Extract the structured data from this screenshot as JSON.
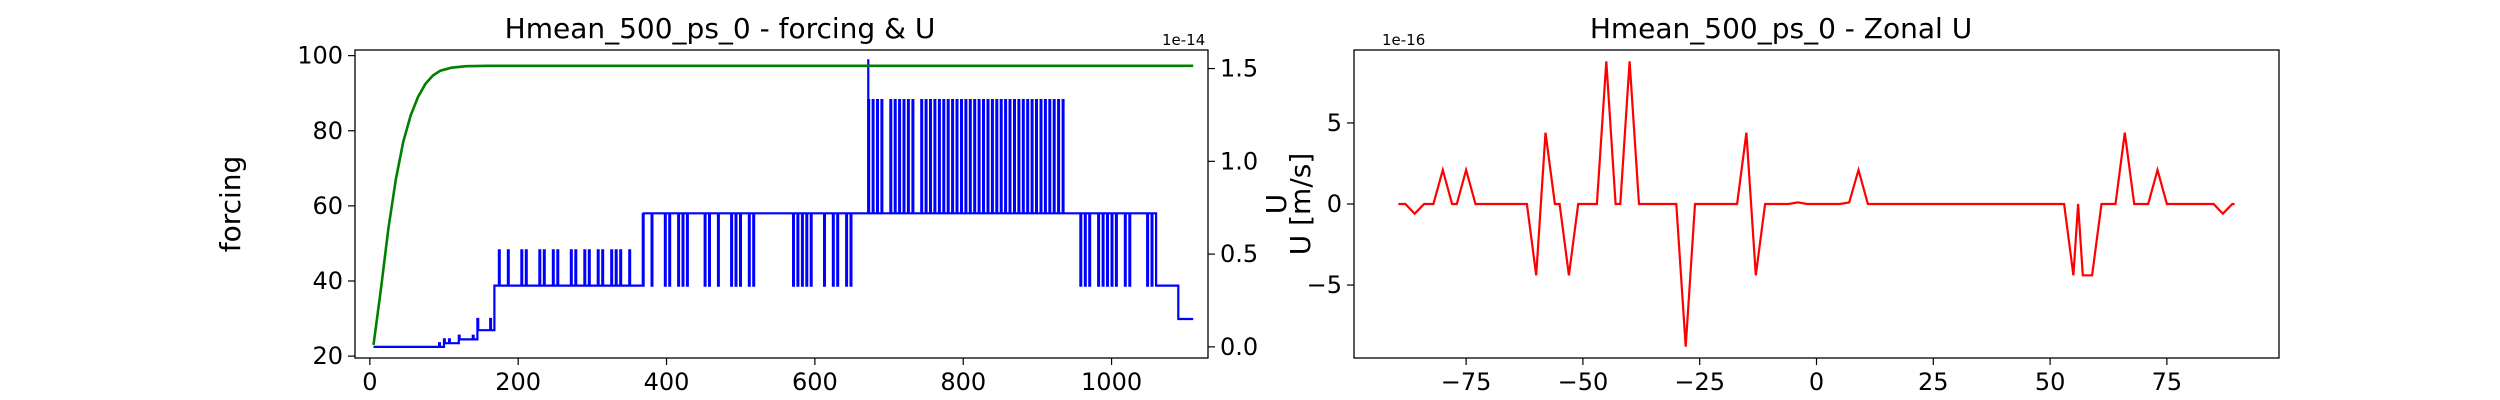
{
  "chart_data": [
    {
      "type": "line",
      "title": "Hmean_500_ps_0 - forcing & U",
      "ylabel": "forcing",
      "y2label": "U",
      "y2_offset_text": "1e-14",
      "xlim": [
        -20,
        1130
      ],
      "ylim": [
        19.5,
        101.5
      ],
      "y2lim": [
        -0.06,
        1.6
      ],
      "xticks": [
        0,
        200,
        400,
        600,
        800,
        1000
      ],
      "yticks": [
        20,
        40,
        60,
        80,
        100
      ],
      "y2ticks": [
        0.0,
        0.5,
        1.0,
        1.5
      ],
      "y2tick_labels": [
        "0.0",
        "0.5",
        "1.0",
        "1.5"
      ],
      "grid": false,
      "series": [
        {
          "color": "#008000",
          "axis": "left",
          "description_points": [
            [
              5,
              23
            ],
            [
              15,
              38
            ],
            [
              25,
              54
            ],
            [
              35,
              67
            ],
            [
              45,
              77
            ],
            [
              55,
              84
            ],
            [
              65,
              89
            ],
            [
              75,
              92.5
            ],
            [
              85,
              94.7
            ],
            [
              95,
              96
            ],
            [
              110,
              96.8
            ],
            [
              130,
              97.2
            ],
            [
              160,
              97.3
            ],
            [
              1110,
              97.3
            ]
          ]
        },
        {
          "color": "#0000ff",
          "axis": "right",
          "levels": [
            0.0,
            0.02,
            0.04,
            0.06,
            0.09,
            0.15,
            0.33,
            0.52,
            0.72,
            1.33,
            1.55
          ],
          "segments": [
            {
              "x0": 5,
              "x1": 80,
              "base": 0.0
            },
            {
              "x0": 80,
              "x1": 100,
              "base": 0.0,
              "spike_to": 0.02
            },
            {
              "x0": 100,
              "x1": 120,
              "base": 0.02,
              "spike_to": 0.04
            },
            {
              "x0": 120,
              "x1": 145,
              "base": 0.04,
              "spike_to": 0.06
            },
            {
              "x0": 145,
              "x1": 168,
              "base": 0.09,
              "spike_to": 0.15
            },
            {
              "x0": 168,
              "x1": 368,
              "base": 0.33,
              "spike_to": 0.52
            },
            {
              "x0": 368,
              "x1": 672,
              "base": 0.72,
              "spike_to": 0.33
            },
            {
              "x0": 672,
              "x1": 940,
              "base": 0.72,
              "spike_to": 1.33
            },
            {
              "x0": 940,
              "x1": 1060,
              "base": 0.72,
              "spike_to": 0.33
            },
            {
              "x0": 1060,
              "x1": 1090,
              "base": 0.33,
              "spike_to": 0.15
            },
            {
              "x0": 1090,
              "x1": 1110,
              "base": 0.15,
              "spike_to": 0.09
            }
          ],
          "max_peak": {
            "x": 672,
            "y": 1.55
          }
        }
      ]
    },
    {
      "type": "line",
      "title": "Hmean_500_ps_0 - Zonal U",
      "ylabel": "U [m/s]",
      "y_offset_text": "1e-16",
      "xlim": [
        -99,
        99
      ],
      "ylim": [
        -9.5,
        9.5
      ],
      "xticks": [
        -75,
        -50,
        -25,
        0,
        25,
        50,
        75
      ],
      "xtick_labels": [
        "−75",
        "−50",
        "−25",
        "0",
        "25",
        "50",
        "75"
      ],
      "yticks": [
        -5,
        0,
        5
      ],
      "ytick_labels": [
        "−5",
        "0",
        "5"
      ],
      "grid": false,
      "series": [
        {
          "color": "#ff0000",
          "points": [
            [
              -89.5,
              0
            ],
            [
              -88,
              0
            ],
            [
              -86,
              -0.6
            ],
            [
              -84,
              0
            ],
            [
              -82,
              0
            ],
            [
              -80,
              2.1
            ],
            [
              -78,
              0
            ],
            [
              -77,
              0
            ],
            [
              -75,
              2.1
            ],
            [
              -73,
              0
            ],
            [
              -62,
              0
            ],
            [
              -60,
              -4.4
            ],
            [
              -58,
              4.4
            ],
            [
              -56,
              0
            ],
            [
              -55,
              0
            ],
            [
              -53,
              -4.4
            ],
            [
              -51,
              0
            ],
            [
              -47,
              0
            ],
            [
              -45,
              8.8
            ],
            [
              -43,
              0
            ],
            [
              -42,
              0
            ],
            [
              -40,
              8.8
            ],
            [
              -38,
              0
            ],
            [
              -30,
              0
            ],
            [
              -28,
              -8.8
            ],
            [
              -26,
              0
            ],
            [
              -17,
              0
            ],
            [
              -15,
              4.4
            ],
            [
              -13,
              -4.4
            ],
            [
              -11,
              0
            ],
            [
              -6,
              0
            ],
            [
              -4,
              0.1
            ],
            [
              -2,
              0
            ],
            [
              5,
              0
            ],
            [
              7,
              0.1
            ],
            [
              9,
              2.1
            ],
            [
              11,
              0
            ],
            [
              53,
              0
            ],
            [
              55,
              -4.4
            ],
            [
              56,
              0
            ],
            [
              57,
              -4.4
            ],
            [
              59,
              -4.4
            ],
            [
              61,
              0
            ],
            [
              64,
              0
            ],
            [
              66,
              4.4
            ],
            [
              68,
              0
            ],
            [
              71,
              0
            ],
            [
              73,
              2.1
            ],
            [
              75,
              0
            ],
            [
              85,
              0
            ],
            [
              87,
              -0.6
            ],
            [
              89,
              0
            ],
            [
              89.5,
              0
            ]
          ]
        }
      ]
    }
  ]
}
